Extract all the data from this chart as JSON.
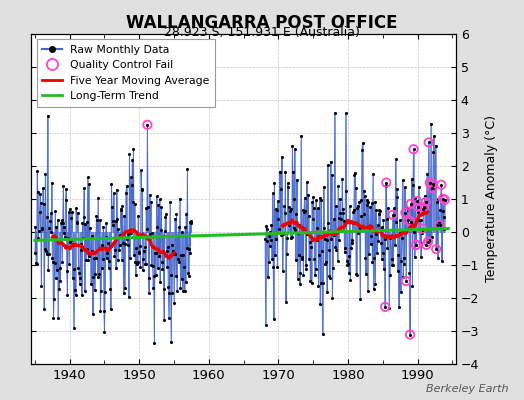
{
  "title": "WALLANGARRA POST OFFICE",
  "subtitle": "28.923 S, 151.931 E (Australia)",
  "ylabel": "Temperature Anomaly (°C)",
  "credit": "Berkeley Earth",
  "xlim": [
    1934.5,
    1995.5
  ],
  "ylim": [
    -4,
    6
  ],
  "yticks": [
    -4,
    -3,
    -2,
    -1,
    0,
    1,
    2,
    3,
    4,
    5,
    6
  ],
  "xticks": [
    1940,
    1950,
    1960,
    1970,
    1980,
    1990
  ],
  "fig_bg_color": "#e0e0e0",
  "plot_bg_color": "#ffffff",
  "grid_color": "#c8c8c8",
  "raw_line_color": "#4466cc",
  "raw_dot_color": "#000000",
  "qc_fail_color": "#ff44cc",
  "moving_avg_color": "#ee0000",
  "trend_color": "#22bb22",
  "seed": 12345,
  "year_start": 1935.0,
  "year_end": 1993.9,
  "gap_start": 1957.5,
  "gap_end": 1968.0,
  "trend_slope": 0.006,
  "trend_intercept_year": 1964,
  "trend_intercept_val": -0.08,
  "noise_std": 1.1,
  "moving_avg_window": 60
}
